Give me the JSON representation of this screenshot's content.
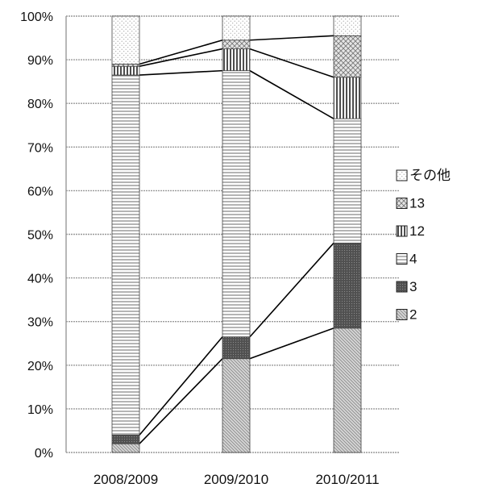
{
  "chart_data": {
    "type": "bar",
    "stacked": true,
    "categories": [
      "2008/2009",
      "2009/2010",
      "2010/2011"
    ],
    "series": [
      {
        "name": "2",
        "values": [
          2,
          21.5,
          28.5
        ]
      },
      {
        "name": "3",
        "values": [
          2,
          5,
          19.5
        ]
      },
      {
        "name": "4",
        "values": [
          82.5,
          61,
          28.5
        ]
      },
      {
        "name": "12",
        "values": [
          2,
          5,
          9.5
        ]
      },
      {
        "name": "13",
        "values": [
          0.5,
          2,
          9.5
        ]
      },
      {
        "name": "その他",
        "values": [
          11,
          5.5,
          4.5
        ]
      }
    ],
    "y_ticks": [
      "0%",
      "10%",
      "20%",
      "30%",
      "40%",
      "50%",
      "60%",
      "70%",
      "80%",
      "90%",
      "100%"
    ],
    "ylim": [
      0,
      100
    ],
    "legend": "right",
    "grid": true,
    "colors": {
      "2": "#cfcfcf",
      "3": "#5a5a5a",
      "4": "#ffffff",
      "12": "#ffffff",
      "13": "#dedede",
      "その他": "#ffffff",
      "grid": "#9a9a9a",
      "connector": "#000000"
    }
  }
}
